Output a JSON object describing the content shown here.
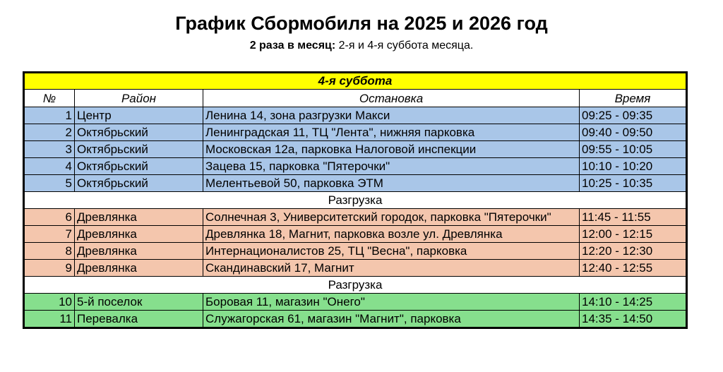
{
  "title": "График Сбормобиля на 2025 и 2026 год",
  "subtitle": {
    "bold": "2 раза в месяц:",
    "text": " 2-я и 4-я суббота месяца."
  },
  "table": {
    "banner": "4-я суббота",
    "headers": [
      "№",
      "Район",
      "Остановка",
      "Время"
    ],
    "colors": {
      "banner": "#ffff00",
      "group1": "#a9c6e8",
      "group2": "#f4c6ad",
      "group3": "#86df8d"
    },
    "separator": "Разгрузка",
    "group1": [
      {
        "no": "1",
        "district": "Центр",
        "stop": "Ленина 14, зона разгрузки Макси",
        "time": "09:25 - 09:35"
      },
      {
        "no": "2",
        "district": "Октябрьский",
        "stop": "Ленинградская 11, ТЦ \"Лента\", нижняя парковка",
        "time": "09:40 - 09:50"
      },
      {
        "no": "3",
        "district": "Октябрьский",
        "stop": "Московская 12а, парковка Налоговой инспекции",
        "time": "09:55 - 10:05"
      },
      {
        "no": "4",
        "district": "Октябрьский",
        "stop": "Зацева 15, парковка \"Пятерочки\"",
        "time": "10:10 - 10:20"
      },
      {
        "no": "5",
        "district": "Октябрьский",
        "stop": "Мелентьевой 50, парковка ЭТМ",
        "time": "10:25 - 10:35"
      }
    ],
    "group2": [
      {
        "no": "6",
        "district": "Древлянка",
        "stop": "Солнечная 3, Университетский городок, парковка \"Пятерочки\"",
        "time": "11:45 - 11:55"
      },
      {
        "no": "7",
        "district": "Древлянка",
        "stop": "Древлянка 18, Магнит, парковка возле ул. Древлянка",
        "time": "12:00 - 12:15"
      },
      {
        "no": "8",
        "district": "Древлянка",
        "stop": "Интернационалистов 25, ТЦ \"Весна\", парковка",
        "time": "12:20 - 12:30"
      },
      {
        "no": "9",
        "district": "Древлянка",
        "stop": "Скандинавский 17, Магнит",
        "time": "12:40 - 12:55"
      }
    ],
    "group3": [
      {
        "no": "10",
        "district": "5-й поселок",
        "stop": "Боровая 11, магазин \"Онего\"",
        "time": "14:10 - 14:25"
      },
      {
        "no": "11",
        "district": "Перевалка",
        "stop": "Служагорская 61, магазин \"Магнит\", парковка",
        "time": "14:35 - 14:50"
      }
    ]
  }
}
